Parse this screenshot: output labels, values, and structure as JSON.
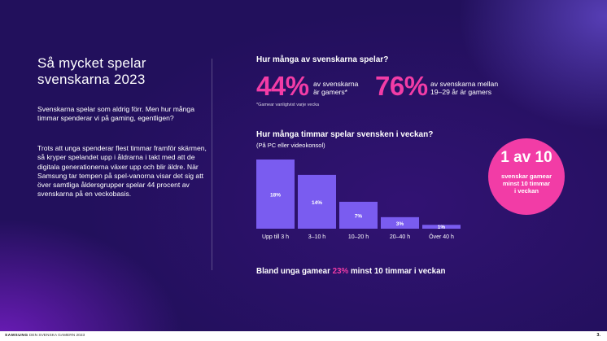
{
  "left": {
    "title": "Så mycket spelar svenskarna 2023",
    "intro": "Svenskarna spelar som aldrig förr. Men hur många timmar spenderar vi på gaming, egentligen?",
    "body": "Trots att unga spenderar flest timmar framför skärmen, så kryper spelandet upp i åldrarna i takt med att de digitala generationerna växer upp och blir äldre. När Samsung tar tempen på spel-vanorna visar det sig att över samtliga åldersgrupper spelar 44 procent av svenskarna på en veckobasis."
  },
  "stats": {
    "question": "Hur många av svenskarna spelar?",
    "stat1_value": "44%",
    "stat1_desc_line1": "av svenskarna",
    "stat1_desc_line2": "är gamers*",
    "stat2_value": "76%",
    "stat2_desc_line1": "av svenskarna mellan",
    "stat2_desc_line2": "19–29 år är gamers",
    "footnote": "*Gamear vanligtvist varje vecka"
  },
  "hours": {
    "question": "Hur många timmar spelar svensken i veckan?",
    "subquestion": "(På PC eller videokonsol)"
  },
  "badge": {
    "big": "1 av 10",
    "line1": "svenskar gamear",
    "line2": "minst 10 timmar",
    "line3": "i veckan"
  },
  "bottom": {
    "before": "Bland unga gamear ",
    "highlight": "23%",
    "after": " minst 10 timmar i veckan"
  },
  "footer": {
    "brand": "SAMSUNG",
    "doc": "· DEN SVENSKA GAMERN 2023",
    "page": "3."
  },
  "colors": {
    "accent_pink": "#f23ca6",
    "bar": "#7a5cf0",
    "background": "#22105c"
  },
  "chart_data": {
    "type": "bar",
    "categories": [
      "Upp till 3 h",
      "3–10 h",
      "10–20 h",
      "20–40 h",
      "Över 40 h"
    ],
    "values": [
      18,
      14,
      7,
      3,
      1
    ],
    "value_labels": [
      "18%",
      "14%",
      "7%",
      "3%",
      "1%"
    ],
    "title": "",
    "xlabel": "",
    "ylabel": "",
    "ylim": [
      0,
      18
    ],
    "grid": false,
    "legend": "none"
  }
}
